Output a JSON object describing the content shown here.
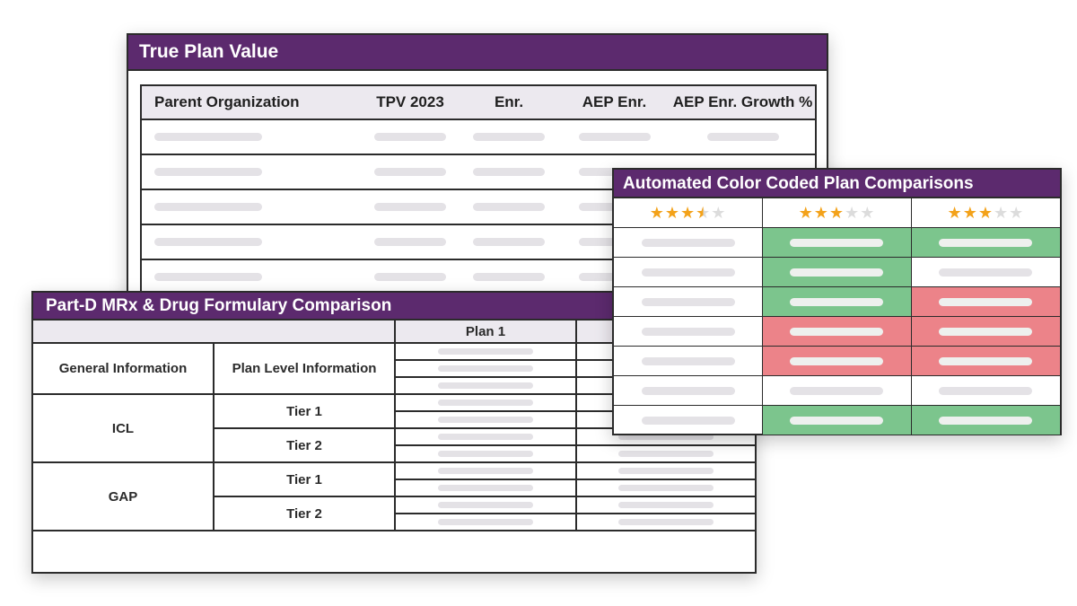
{
  "true_plan_value": {
    "title": "True Plan Value",
    "columns": [
      "Parent Organization",
      "TPV 2023",
      "Enr.",
      "AEP Enr.",
      "AEP Enr. Growth %"
    ],
    "row_count": 5
  },
  "partd": {
    "title": "Part-D MRx & Drug Formulary Comparison",
    "plan_header": "Plan 1",
    "groups": [
      {
        "label": "General Information",
        "sub": "Plan Level Information"
      },
      {
        "label": "ICL",
        "tiers": [
          "Tier 1",
          "Tier 2"
        ]
      },
      {
        "label": "GAP",
        "tiers": [
          "Tier 1",
          "Tier 2"
        ]
      }
    ]
  },
  "acc": {
    "title": "Automated Color Coded Plan Comparisons",
    "ratings": [
      3.5,
      3,
      3
    ],
    "rows": [
      [
        "plain",
        "green",
        "green"
      ],
      [
        "plain",
        "green",
        "plain"
      ],
      [
        "plain",
        "green",
        "red"
      ],
      [
        "plain",
        "red",
        "red"
      ],
      [
        "plain",
        "red",
        "red"
      ],
      [
        "plain",
        "plain",
        "plain"
      ],
      [
        "plain",
        "green",
        "green"
      ]
    ],
    "colors": {
      "green": "#7cc58d",
      "red": "#ec8389",
      "header": "#5c2a6e",
      "star": "#f3a21a"
    }
  }
}
